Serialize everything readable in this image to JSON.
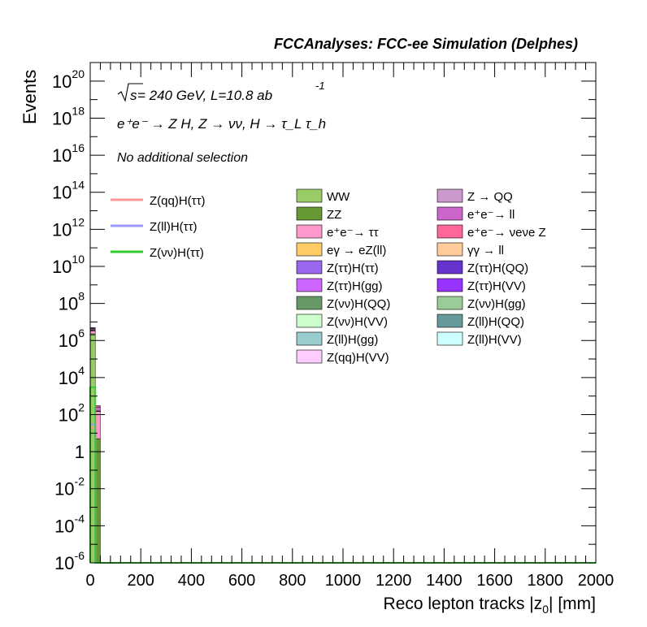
{
  "chart_data": {
    "type": "bar",
    "stacked": true,
    "title": "FCCAnalyses: FCC-ee Simulation (Delphes)",
    "xlabel": "Reco lepton tracks |z0| [mm]",
    "ylabel": "Events",
    "xlim": [
      0,
      2000
    ],
    "ylim": [
      1e-06,
      1e+21
    ],
    "ylog": true,
    "x_ticks": [
      "0",
      "200",
      "400",
      "600",
      "800",
      "1000",
      "1200",
      "1400",
      "1600",
      "1800",
      "2000"
    ],
    "y_ticks": [
      {
        "base": "10",
        "exp": "-6"
      },
      {
        "base": "10",
        "exp": "-4"
      },
      {
        "base": "10",
        "exp": "-2"
      },
      {
        "base": "1",
        "exp": ""
      },
      {
        "base": "10",
        "exp": "2"
      },
      {
        "base": "10",
        "exp": "4"
      },
      {
        "base": "10",
        "exp": "6"
      },
      {
        "base": "10",
        "exp": "8"
      },
      {
        "base": "10",
        "exp": "10"
      },
      {
        "base": "10",
        "exp": "12"
      },
      {
        "base": "10",
        "exp": "14"
      },
      {
        "base": "10",
        "exp": "16"
      },
      {
        "base": "10",
        "exp": "18"
      },
      {
        "base": "10",
        "exp": "20"
      }
    ],
    "annotations": {
      "energy_prefix": "s",
      "energy_text": " = 240 GeV, L=10.8 ab",
      "energy_exp": "-1",
      "process": "e⁺e⁻ → Z H, Z → νν, H → τ_L τ_h",
      "selection": "No additional selection"
    },
    "bin_edges": [
      0,
      20,
      40
    ],
    "stack": [
      {
        "name": "WW",
        "color": "#99cc66",
        "values": [
          2000000.0,
          0
        ]
      },
      {
        "name": "ZZ",
        "color": "#669933",
        "values": [
          300000.0,
          5
        ]
      },
      {
        "name": "e⁺e⁻→ ττ",
        "color": "#ff99cc",
        "values": [
          1000000.0,
          150
        ]
      },
      {
        "name": "eγ → eZ(ll)",
        "color": "#ffcc66",
        "values": [
          300000.0,
          0
        ]
      },
      {
        "name": "Z(ττ)H(ττ)",
        "color": "#9966ee",
        "values": [
          1000.0,
          1
        ]
      },
      {
        "name": "Z(ττ)H(gg)",
        "color": "#cc66ff",
        "values": [
          500,
          1
        ]
      },
      {
        "name": "Z(νν)H(QQ)",
        "color": "#669966",
        "values": [
          300,
          0
        ]
      },
      {
        "name": "Z(νν)H(VV)",
        "color": "#ccffcc",
        "values": [
          200,
          0
        ]
      },
      {
        "name": "Z(ll)H(gg)",
        "color": "#99cccc",
        "values": [
          150,
          0
        ]
      },
      {
        "name": "Z(qq)H(VV)",
        "color": "#ffccff",
        "values": [
          100,
          0
        ]
      },
      {
        "name": "Z → QQ",
        "color": "#cc99cc",
        "values": [
          500000.0,
          0
        ]
      },
      {
        "name": "e⁺e⁻→ ll",
        "color": "#cc66cc",
        "values": [
          400000.0,
          100
        ]
      },
      {
        "name": "e⁺e⁻→ νeνe Z",
        "color": "#ff6699",
        "values": [
          200000.0,
          50
        ]
      },
      {
        "name": "γγ → ll",
        "color": "#ffcc99",
        "values": [
          100000.0,
          0
        ]
      },
      {
        "name": "Z(ττ)H(QQ)",
        "color": "#6633cc",
        "values": [
          300,
          0
        ]
      },
      {
        "name": "Z(ττ)H(VV)",
        "color": "#9933ff",
        "values": [
          200,
          0
        ]
      },
      {
        "name": "Z(νν)H(gg)",
        "color": "#99cc99",
        "values": [
          150,
          0
        ]
      },
      {
        "name": "Z(ll)H(QQ)",
        "color": "#669999",
        "values": [
          100,
          0
        ]
      },
      {
        "name": "Z(ll)H(VV)",
        "color": "#ccffff",
        "values": [
          50,
          0
        ]
      }
    ],
    "signals": [
      {
        "name": "Z(qq)H(ττ)",
        "color": "#ff9999",
        "values": [
          20,
          0
        ]
      },
      {
        "name": "Z(ll)H(ττ)",
        "color": "#9999ff",
        "values": [
          30,
          0
        ]
      },
      {
        "name": "Z(νν)H(ττ)",
        "color": "#33cc33",
        "values": [
          3000,
          0
        ]
      }
    ],
    "legend_placement": "top-right",
    "grid": false
  }
}
